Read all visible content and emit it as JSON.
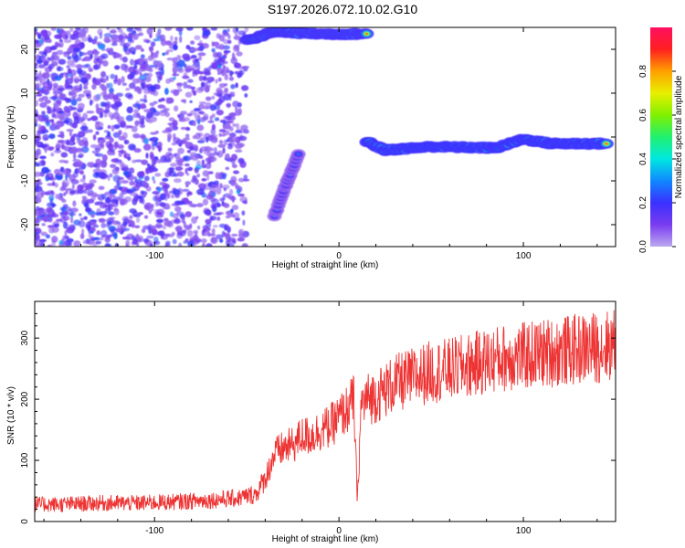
{
  "title": "S197.2026.072.10.02.G10",
  "colors": {
    "snr_line": "#ee3333",
    "spectrogram_background": "#ffffff",
    "colorbar": [
      "#bba8f0",
      "#7a3cf0",
      "#3a30ff",
      "#1088ff",
      "#00e8e0",
      "#20f070",
      "#80f000",
      "#e8f000",
      "#ffa000",
      "#ff2020",
      "#ff1060"
    ]
  },
  "chart_data": [
    {
      "type": "heatmap",
      "panel": "spectrogram",
      "xlabel": "Height of straight line (km)",
      "ylabel": "Frequency (Hz)",
      "xlim": [
        -165,
        150
      ],
      "ylim": [
        -25,
        25
      ],
      "xticks": [
        -100,
        0,
        100
      ],
      "yticks": [
        -20,
        -10,
        0,
        10,
        20
      ],
      "colorbar": {
        "label": "Normalized spectral amplitude",
        "ticks": [
          0.0,
          0.2,
          0.4,
          0.6,
          0.8
        ],
        "range": [
          0,
          1
        ]
      },
      "features": [
        {
          "desc": "noise",
          "x": [
            -165,
            -50
          ],
          "y": [
            -25,
            25
          ],
          "amplitude": 0.15
        },
        {
          "desc": "track",
          "points": [
            [
              15,
              -1
            ],
            [
              25,
              -3
            ],
            [
              50,
              -2.2
            ],
            [
              85,
              -2.5
            ],
            [
              100,
              -0.5
            ],
            [
              115,
              -1.5
            ],
            [
              145,
              -1.5
            ]
          ],
          "amplitude": 0.95
        },
        {
          "desc": "track",
          "points": [
            [
              -50,
              22
            ],
            [
              -35,
              24
            ],
            [
              -10,
              23.5
            ],
            [
              15,
              23.5
            ]
          ],
          "amplitude": 0.9
        },
        {
          "desc": "track",
          "points": [
            [
              -35,
              -18
            ],
            [
              -28,
              -10
            ],
            [
              -22,
              -4
            ]
          ],
          "amplitude": 0.3
        }
      ]
    },
    {
      "type": "line",
      "panel": "snr",
      "xlabel": "Height of straight line (km)",
      "ylabel": "SNR (10 * v/v)",
      "xlim": [
        -165,
        150
      ],
      "ylim": [
        0,
        360
      ],
      "xticks": [
        -100,
        0,
        100
      ],
      "yticks": [
        0,
        100,
        200,
        300
      ],
      "series": [
        {
          "x": [
            -165,
            -150,
            -130,
            -110,
            -90,
            -70,
            -55,
            -45,
            -40,
            -35,
            -30,
            -25,
            -20,
            -15,
            -10,
            -5,
            0,
            5,
            8,
            10,
            12,
            15,
            20,
            25,
            30,
            40,
            50,
            60,
            70,
            80,
            90,
            100,
            110,
            120,
            130,
            140,
            150
          ],
          "values": [
            28,
            28,
            30,
            30,
            32,
            35,
            38,
            45,
            70,
            110,
            120,
            125,
            140,
            140,
            150,
            155,
            170,
            185,
            200,
            30,
            190,
            200,
            205,
            215,
            225,
            235,
            245,
            248,
            255,
            262,
            268,
            270,
            275,
            278,
            282,
            285,
            290
          ]
        }
      ]
    }
  ]
}
